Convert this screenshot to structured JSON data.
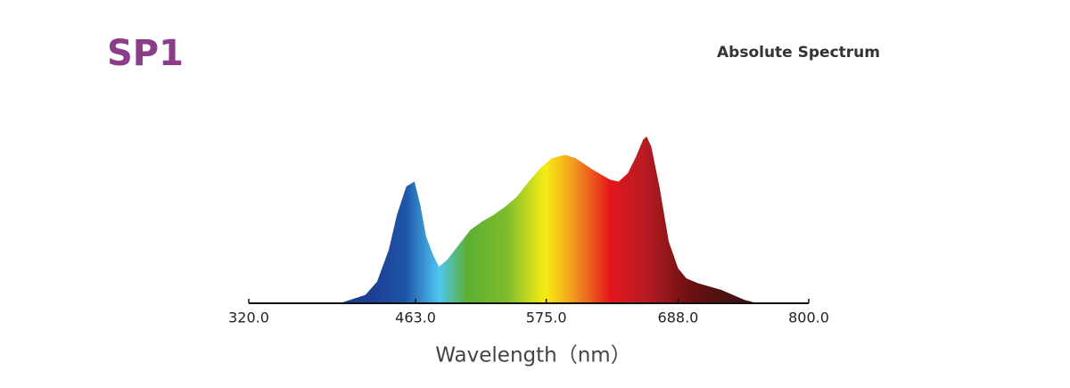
{
  "chart_data": {
    "type": "area",
    "title": "SP1",
    "subtitle": "Absolute Spectrum",
    "x_label": "Wavelength（nm）",
    "x": [
      380,
      400,
      420,
      430,
      440,
      447,
      455,
      462,
      467,
      472,
      478,
      483,
      490,
      500,
      510,
      520,
      530,
      540,
      550,
      560,
      570,
      580,
      591,
      600,
      615,
      630,
      637,
      645,
      652,
      658,
      661,
      665,
      672,
      680,
      688,
      695,
      705,
      715,
      725,
      735,
      745,
      756
    ],
    "values": [
      0,
      0.5,
      5,
      13,
      32,
      53,
      70,
      73,
      59,
      40,
      29,
      22,
      26,
      35,
      44,
      49,
      53,
      58,
      64,
      73,
      81,
      87,
      89,
      87,
      80,
      74,
      73,
      78,
      88,
      98,
      100,
      94,
      70,
      37,
      21,
      15,
      12,
      10,
      8,
      5,
      2,
      0
    ],
    "xlim": [
      320,
      800
    ],
    "ylim": [
      0,
      100
    ],
    "xticks": [
      {
        "value": 320,
        "label": "320.0"
      },
      {
        "value": 463,
        "label": "463.0"
      },
      {
        "value": 575,
        "label": "575.0"
      },
      {
        "value": 688,
        "label": "688.0"
      },
      {
        "value": 800,
        "label": "800.0"
      }
    ]
  }
}
